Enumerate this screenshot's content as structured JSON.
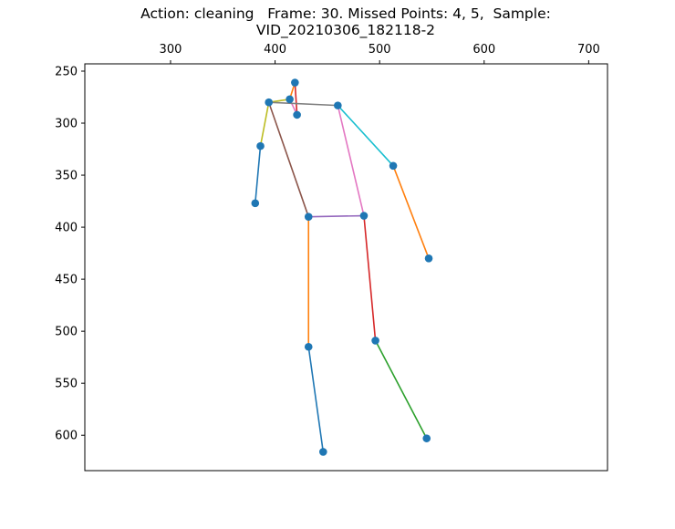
{
  "title_line1": "Action: cleaning   Frame: 30. Missed Points: 4, 5,  Sample:",
  "title_line2": "VID_20210306_182118-2",
  "chart_data": {
    "type": "scatter",
    "xlim": [
      218,
      718
    ],
    "ylim": [
      634,
      243
    ],
    "x_axis_position": "top",
    "y_inverted": true,
    "grid": false,
    "xticks": [
      300,
      400,
      500,
      600,
      700
    ],
    "yticks": [
      250,
      300,
      350,
      400,
      450,
      500,
      550,
      600
    ],
    "point_color": "#1f77b4",
    "points": [
      {
        "x": 419,
        "y": 261
      },
      {
        "x": 414,
        "y": 277
      },
      {
        "x": 421,
        "y": 292
      },
      {
        "x": 394,
        "y": 280
      },
      {
        "x": 460,
        "y": 283
      },
      {
        "x": 386,
        "y": 322
      },
      {
        "x": 513,
        "y": 341
      },
      {
        "x": 381,
        "y": 377
      },
      {
        "x": 547,
        "y": 430
      },
      {
        "x": 432,
        "y": 390
      },
      {
        "x": 485,
        "y": 389
      },
      {
        "x": 432,
        "y": 515
      },
      {
        "x": 496,
        "y": 509
      },
      {
        "x": 446,
        "y": 616
      },
      {
        "x": 545,
        "y": 603
      }
    ],
    "bones": [
      {
        "from": 0,
        "to": 1,
        "color": "#ff7f0e"
      },
      {
        "from": 0,
        "to": 2,
        "color": "#d62728"
      },
      {
        "from": 1,
        "to": 2,
        "color": "#e377c2"
      },
      {
        "from": 1,
        "to": 3,
        "color": "#bcbd22"
      },
      {
        "from": 3,
        "to": 4,
        "color": "#7f7f7f"
      },
      {
        "from": 3,
        "to": 5,
        "color": "#bcbd22"
      },
      {
        "from": 5,
        "to": 7,
        "color": "#1f77b4"
      },
      {
        "from": 4,
        "to": 6,
        "color": "#17becf"
      },
      {
        "from": 6,
        "to": 8,
        "color": "#ff7f0e"
      },
      {
        "from": 3,
        "to": 9,
        "color": "#8c564b"
      },
      {
        "from": 4,
        "to": 10,
        "color": "#e377c2"
      },
      {
        "from": 9,
        "to": 10,
        "color": "#9467bd"
      },
      {
        "from": 9,
        "to": 11,
        "color": "#ff7f0e"
      },
      {
        "from": 10,
        "to": 12,
        "color": "#d62728"
      },
      {
        "from": 11,
        "to": 13,
        "color": "#1f77b4"
      },
      {
        "from": 12,
        "to": 14,
        "color": "#2ca02c"
      }
    ]
  }
}
